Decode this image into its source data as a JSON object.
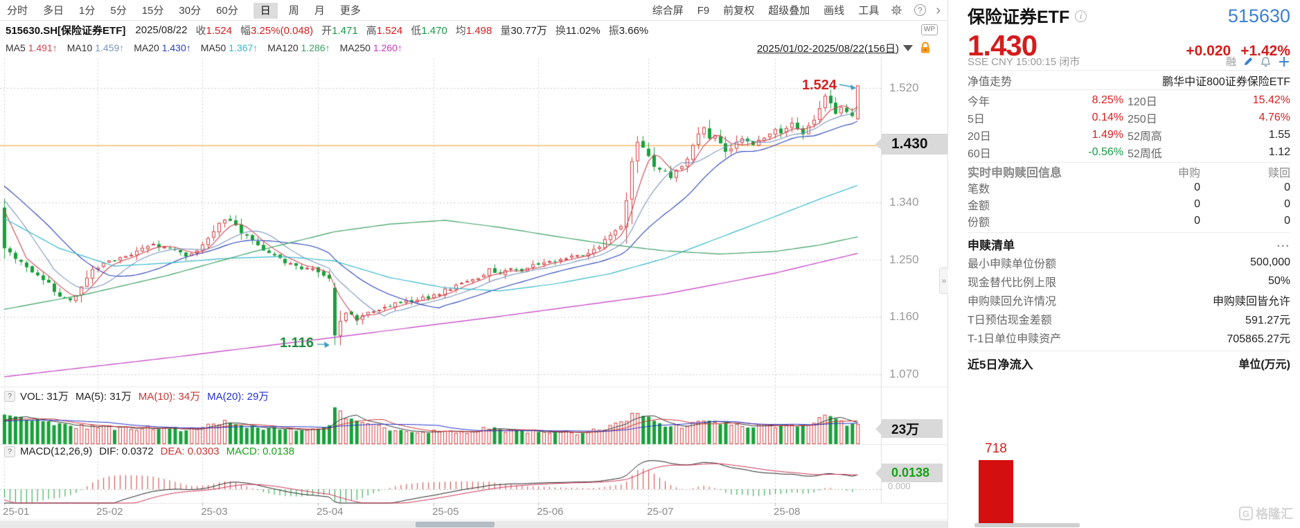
{
  "toolbar": {
    "periods": [
      "分时",
      "多日",
      "1分",
      "5分",
      "15分",
      "30分",
      "60分",
      "日",
      "周",
      "月",
      "更多"
    ],
    "active_period": "日",
    "right_tools": [
      "综合屏",
      "F9",
      "前复权",
      "超级叠加",
      "画线",
      "工具"
    ],
    "gear_icon": "gear",
    "help_icon": "?",
    "more_chevron": "›"
  },
  "info_bar": {
    "symbol": "515630.SH[保险证券ETF]",
    "date": "2025/08/22",
    "fields": [
      {
        "label": "收",
        "value": "1.524",
        "cls": "red"
      },
      {
        "label": "幅",
        "value": "3.25%(0.048)",
        "cls": "red"
      },
      {
        "label": "开",
        "value": "1.471",
        "cls": "green"
      },
      {
        "label": "高",
        "value": "1.524",
        "cls": "red"
      },
      {
        "label": "低",
        "value": "1.470",
        "cls": "green"
      },
      {
        "label": "均",
        "value": "1.498",
        "cls": "red"
      },
      {
        "label": "量",
        "value": "30.77万",
        "cls": "dark"
      },
      {
        "label": "换",
        "value": "11.02%",
        "cls": "dark"
      },
      {
        "label": "振",
        "value": "3.66%",
        "cls": "dark"
      }
    ],
    "wp_badge": "WP"
  },
  "ma_bar": {
    "items": [
      {
        "label": "MA5",
        "value": "1.491↑",
        "cls": "c-ma5"
      },
      {
        "label": "MA10",
        "value": "1.459↑",
        "cls": "c-ma10"
      },
      {
        "label": "MA20",
        "value": "1.430↑",
        "cls": "c-ma20"
      },
      {
        "label": "MA50",
        "value": "1.367↑",
        "cls": "c-ma50"
      },
      {
        "label": "MA120",
        "value": "1.286↑",
        "cls": "c-ma120"
      },
      {
        "label": "MA250",
        "value": "1.260↑",
        "cls": "c-ma250"
      }
    ],
    "range": "2025/01/02-2025/08/22(156日)"
  },
  "price_axis": {
    "ticks": [
      {
        "label": "1.520",
        "price": 1.52
      },
      {
        "label": "1.340",
        "price": 1.34
      },
      {
        "label": "1.250",
        "price": 1.25
      },
      {
        "label": "1.160",
        "price": 1.16
      },
      {
        "label": "1.070",
        "price": 1.07
      }
    ],
    "current_tag": "1.430"
  },
  "annotations": {
    "period_high": "1.524",
    "period_low": "1.116"
  },
  "vol_pane": {
    "labels": [
      {
        "text": "VOL: 31万",
        "color": "#222"
      },
      {
        "text": "MA(5): 31万",
        "color": "#222"
      },
      {
        "text": "MA(10): 34万",
        "color": "#cc3333"
      },
      {
        "text": "MA(20): 29万",
        "color": "#2233cc"
      }
    ],
    "tag": "23万"
  },
  "macd_pane": {
    "title": "MACD(12,26,9)",
    "dif_label": "DIF: 0.0372",
    "dea_label": "DEA: 0.0303",
    "macd_label": "MACD: 0.0138",
    "tag": "0.0138",
    "zero_label": "0.000"
  },
  "x_axis": {
    "months": [
      "25-01",
      "25-02",
      "25-03",
      "25-04",
      "25-05",
      "25-06",
      "25-07",
      "25-08"
    ]
  },
  "chart_data": {
    "type": "candlestick",
    "title": "515630.SH 保险证券ETF 日K(前复权) 2025/01/02-2025/08/22",
    "days": 156,
    "gridline_prices": [
      1.52,
      1.34,
      1.25,
      1.16,
      1.07
    ],
    "current_price_line": 1.43,
    "period_high": 1.524,
    "period_low": 1.116,
    "last_day": {
      "date": "2025/08/22",
      "open": 1.471,
      "high": 1.524,
      "low": 1.47,
      "close": 1.524,
      "volume_wan": 30.77,
      "turnover": "11.02%",
      "amplitude": "3.66%",
      "avg": 1.498,
      "change": "3.25%"
    },
    "month_start_days": [
      0,
      17,
      36,
      57,
      78,
      97,
      117,
      140
    ],
    "first_open": 1.332,
    "close_anchors": [
      [
        0,
        1.268
      ],
      [
        2,
        1.25
      ],
      [
        4,
        1.238
      ],
      [
        6,
        1.226
      ],
      [
        8,
        1.212
      ],
      [
        10,
        1.192
      ],
      [
        12,
        1.186
      ],
      [
        14,
        1.207
      ],
      [
        16,
        1.236
      ],
      [
        18,
        1.243
      ],
      [
        21,
        1.254
      ],
      [
        24,
        1.262
      ],
      [
        27,
        1.274
      ],
      [
        30,
        1.266
      ],
      [
        33,
        1.257
      ],
      [
        35,
        1.263
      ],
      [
        38,
        1.296
      ],
      [
        40,
        1.316
      ],
      [
        42,
        1.302
      ],
      [
        45,
        1.28
      ],
      [
        48,
        1.26
      ],
      [
        51,
        1.246
      ],
      [
        54,
        1.236
      ],
      [
        57,
        1.232
      ],
      [
        59,
        1.222
      ],
      [
        60,
        1.131
      ],
      [
        61,
        1.151
      ],
      [
        62,
        1.166
      ],
      [
        64,
        1.157
      ],
      [
        66,
        1.169
      ],
      [
        69,
        1.177
      ],
      [
        72,
        1.183
      ],
      [
        75,
        1.187
      ],
      [
        77,
        1.191
      ],
      [
        80,
        1.202
      ],
      [
        83,
        1.213
      ],
      [
        86,
        1.224
      ],
      [
        88,
        1.234
      ],
      [
        90,
        1.229
      ],
      [
        92,
        1.239
      ],
      [
        94,
        1.233
      ],
      [
        96,
        1.241
      ],
      [
        99,
        1.247
      ],
      [
        102,
        1.253
      ],
      [
        105,
        1.259
      ],
      [
        108,
        1.271
      ],
      [
        110,
        1.288
      ],
      [
        112,
        1.302
      ],
      [
        113,
        1.346
      ],
      [
        114,
        1.402
      ],
      [
        115,
        1.436
      ],
      [
        116,
        1.424
      ],
      [
        117,
        1.41
      ],
      [
        118,
        1.394
      ],
      [
        120,
        1.388
      ],
      [
        121,
        1.381
      ],
      [
        122,
        1.393
      ],
      [
        124,
        1.406
      ],
      [
        125,
        1.433
      ],
      [
        126,
        1.449
      ],
      [
        127,
        1.456
      ],
      [
        128,
        1.443
      ],
      [
        129,
        1.449
      ],
      [
        130,
        1.433
      ],
      [
        131,
        1.419
      ],
      [
        132,
        1.426
      ],
      [
        134,
        1.443
      ],
      [
        135,
        1.437
      ],
      [
        136,
        1.431
      ],
      [
        137,
        1.439
      ],
      [
        139,
        1.449
      ],
      [
        140,
        1.453
      ],
      [
        141,
        1.446
      ],
      [
        142,
        1.456
      ],
      [
        143,
        1.463
      ],
      [
        144,
        1.456
      ],
      [
        145,
        1.449
      ],
      [
        146,
        1.459
      ],
      [
        147,
        1.471
      ],
      [
        148,
        1.489
      ],
      [
        149,
        1.506
      ],
      [
        150,
        1.493
      ],
      [
        151,
        1.479
      ],
      [
        152,
        1.491
      ],
      [
        153,
        1.484
      ],
      [
        154,
        1.476
      ],
      [
        155,
        1.524
      ]
    ],
    "vol_anchors_wan": [
      [
        0,
        46
      ],
      [
        4,
        40
      ],
      [
        8,
        33
      ],
      [
        12,
        28
      ],
      [
        16,
        26
      ],
      [
        22,
        24
      ],
      [
        28,
        26
      ],
      [
        33,
        22
      ],
      [
        38,
        32
      ],
      [
        40,
        34
      ],
      [
        45,
        26
      ],
      [
        50,
        23
      ],
      [
        55,
        22
      ],
      [
        59,
        27
      ],
      [
        60,
        56
      ],
      [
        61,
        48
      ],
      [
        62,
        42
      ],
      [
        66,
        30
      ],
      [
        70,
        23
      ],
      [
        75,
        20
      ],
      [
        80,
        18
      ],
      [
        85,
        20
      ],
      [
        88,
        24
      ],
      [
        92,
        19
      ],
      [
        96,
        18
      ],
      [
        100,
        17
      ],
      [
        104,
        18
      ],
      [
        108,
        23
      ],
      [
        112,
        32
      ],
      [
        114,
        44
      ],
      [
        116,
        46
      ],
      [
        118,
        36
      ],
      [
        120,
        30
      ],
      [
        123,
        28
      ],
      [
        125,
        34
      ],
      [
        127,
        39
      ],
      [
        129,
        36
      ],
      [
        131,
        30
      ],
      [
        134,
        26
      ],
      [
        137,
        27
      ],
      [
        139,
        29
      ],
      [
        141,
        28
      ],
      [
        143,
        30
      ],
      [
        145,
        27
      ],
      [
        147,
        32
      ],
      [
        149,
        43
      ],
      [
        150,
        45
      ],
      [
        151,
        36
      ],
      [
        152,
        34
      ],
      [
        153,
        31
      ],
      [
        154,
        28
      ],
      [
        155,
        30.77
      ]
    ],
    "ma50_anchors": [
      [
        0,
        1.315
      ],
      [
        10,
        1.268
      ],
      [
        20,
        1.24
      ],
      [
        30,
        1.245
      ],
      [
        40,
        1.252
      ],
      [
        50,
        1.255
      ],
      [
        55,
        1.252
      ],
      [
        60,
        1.248
      ],
      [
        70,
        1.222
      ],
      [
        80,
        1.206
      ],
      [
        90,
        1.201
      ],
      [
        100,
        1.212
      ],
      [
        110,
        1.228
      ],
      [
        120,
        1.252
      ],
      [
        130,
        1.285
      ],
      [
        140,
        1.318
      ],
      [
        148,
        1.345
      ],
      [
        155,
        1.367
      ]
    ],
    "ma120_anchors": [
      [
        0,
        1.172
      ],
      [
        15,
        1.196
      ],
      [
        30,
        1.226
      ],
      [
        45,
        1.262
      ],
      [
        60,
        1.294
      ],
      [
        70,
        1.306
      ],
      [
        80,
        1.312
      ],
      [
        90,
        1.301
      ],
      [
        100,
        1.287
      ],
      [
        110,
        1.274
      ],
      [
        120,
        1.264
      ],
      [
        130,
        1.259
      ],
      [
        140,
        1.263
      ],
      [
        148,
        1.273
      ],
      [
        155,
        1.286
      ]
    ],
    "ma250_anchors": [
      [
        0,
        1.066
      ],
      [
        30,
        1.096
      ],
      [
        60,
        1.128
      ],
      [
        90,
        1.161
      ],
      [
        120,
        1.196
      ],
      [
        140,
        1.229
      ],
      [
        155,
        1.26
      ]
    ],
    "ma_colors": {
      "ma5": "#cc4452",
      "ma10": "#7b94bd",
      "ma20": "#2940b8",
      "ma50": "#35b8cb",
      "ma120": "#3aa063",
      "ma250": "#c438c4"
    },
    "candle_up_color": "#d43c3c",
    "candle_down_color": "#18a13a",
    "current_line_color": "#f59a23",
    "macd": {
      "dif": 0.0372,
      "dea": 0.0303,
      "macd": 0.0138
    }
  },
  "quote_panel": {
    "name": "保险证券ETF",
    "code": "515630",
    "price": "1.430",
    "change": "+0.020",
    "change_pct": "+1.42%",
    "exchange_line": "SSE   CNY   15:00:15   闭市",
    "margin_flag": "融",
    "nav_row": {
      "label": "净值走势",
      "value": "鹏华中证800证券保险ETF"
    },
    "perf_rows": [
      {
        "l1": "今年",
        "v1": "8.25%",
        "c1": "red",
        "l2": "120日",
        "v2": "15.42%",
        "c2": "red"
      },
      {
        "l1": "5日",
        "v1": "0.14%",
        "c1": "red",
        "l2": "250日",
        "v2": "4.76%",
        "c2": "red"
      },
      {
        "l1": "20日",
        "v1": "1.49%",
        "c1": "red",
        "l2": "52周高",
        "v2": "1.55",
        "c2": "dark"
      },
      {
        "l1": "60日",
        "v1": "-0.56%",
        "c1": "green",
        "l2": "52周低",
        "v2": "1.12",
        "c2": "dark"
      }
    ],
    "rt_section": {
      "title": "实时申购赎回信息",
      "col1": "申购",
      "col2": "赎回",
      "rows": [
        {
          "label": "笔数",
          "v1": "0",
          "v2": "0"
        },
        {
          "label": "金额",
          "v1": "0",
          "v2": "0"
        },
        {
          "label": "份额",
          "v1": "0",
          "v2": "0"
        }
      ]
    },
    "sr_section": {
      "title": "申赎清单",
      "more": "...",
      "rows": [
        {
          "label": "最小申赎单位份额",
          "value": "500,000"
        },
        {
          "label": "现金替代比例上限",
          "value": "50%"
        },
        {
          "label": "申购赎回允许情况",
          "value": "申购赎回皆允许"
        },
        {
          "label": "T日预估现金差额",
          "value": "591.27元"
        },
        {
          "label": "T-1日单位申赎资产",
          "value": "705865.27元"
        }
      ]
    },
    "flow_section": {
      "title": "近5日净流入",
      "unit": "单位(万元)",
      "chart": {
        "type": "bar",
        "unit": "万元",
        "bars": [
          {
            "label": "718",
            "value": 718
          }
        ]
      }
    },
    "watermark": "格隆汇"
  }
}
